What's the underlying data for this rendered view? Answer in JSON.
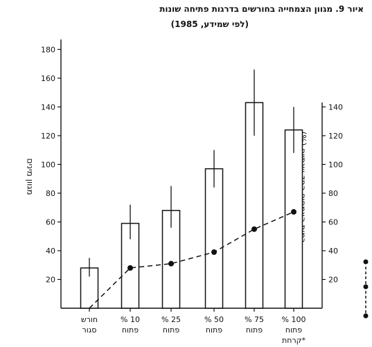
{
  "figure_number": "איור 9.",
  "title_line1": "מגוון הצמחייה בחורשים בדרגות פתיחה שונות",
  "title_line2": "(לפי שמידע, 1985)",
  "left_axis_label": "מגוון מינים",
  "right_axis_label": "כמות הצמחים החד-שנתיים (%)",
  "footnote_mark": "*קרחת",
  "colors": {
    "ink": "#111111",
    "bar_fill": "#ffffff"
  },
  "chart_data": {
    "type": "bar",
    "categories": [
      [
        "חורש",
        "סגור"
      ],
      [
        "10 %",
        "פתוח"
      ],
      [
        "25 %",
        "פתוח"
      ],
      [
        "50 %",
        "פתוח"
      ],
      [
        "75 %",
        "פתוח"
      ],
      [
        "100 %",
        "פתוח"
      ]
    ],
    "series": [
      {
        "values": [
          28,
          59,
          68,
          97,
          143,
          124
        ],
        "error_low": [
          22,
          48,
          56,
          84,
          120,
          108
        ],
        "error_high": [
          35,
          72,
          85,
          110,
          166,
          140
        ]
      },
      {
        "values": [
          0,
          28,
          31,
          39,
          55,
          67
        ],
        "axis": "right",
        "style": "dashed-dots"
      }
    ],
    "left_axis": {
      "ylim": [
        0,
        185
      ],
      "ticks": [
        20,
        40,
        60,
        80,
        100,
        120,
        140,
        160,
        180
      ]
    },
    "right_axis": {
      "ylim": [
        0,
        185
      ],
      "ticks": [
        20,
        40,
        60,
        80,
        100,
        120,
        140
      ]
    },
    "grid": false
  }
}
